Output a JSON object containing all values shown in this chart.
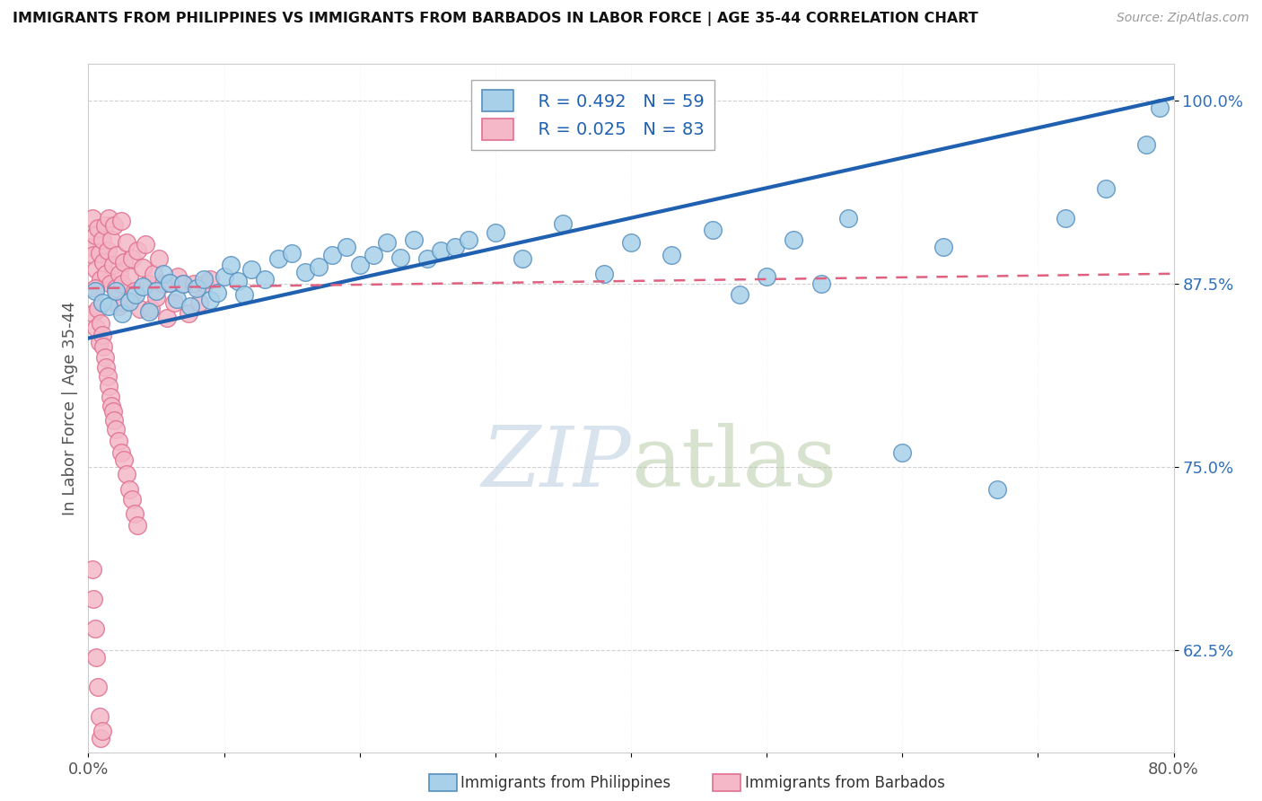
{
  "title": "IMMIGRANTS FROM PHILIPPINES VS IMMIGRANTS FROM BARBADOS IN LABOR FORCE | AGE 35-44 CORRELATION CHART",
  "source": "Source: ZipAtlas.com",
  "ylabel": "In Labor Force | Age 35-44",
  "x_min": 0.0,
  "x_max": 0.8,
  "y_min": 0.555,
  "y_max": 1.025,
  "y_ticks": [
    0.625,
    0.75,
    0.875,
    1.0
  ],
  "y_tick_labels": [
    "62.5%",
    "75.0%",
    "87.5%",
    "100.0%"
  ],
  "x_ticks": [
    0.0,
    0.1,
    0.2,
    0.3,
    0.4,
    0.5,
    0.6,
    0.7,
    0.8
  ],
  "x_tick_labels": [
    "0.0%",
    "",
    "",
    "",
    "",
    "",
    "",
    "",
    "80.0%"
  ],
  "legend_blue_r": "R = 0.492",
  "legend_blue_n": "N = 59",
  "legend_pink_r": "R = 0.025",
  "legend_pink_n": "N = 83",
  "blue_color": "#a8d0e8",
  "pink_color": "#f4b8c8",
  "blue_edge_color": "#5590c0",
  "pink_edge_color": "#e07090",
  "blue_line_color": "#2060b0",
  "pink_line_color": "#e06080",
  "watermark_zip": "ZIP",
  "watermark_atlas": "atlas",
  "blue_line_x0": 0.0,
  "blue_line_y0": 0.838,
  "blue_line_x1": 0.8,
  "blue_line_y1": 1.002,
  "pink_line_x0": 0.0,
  "pink_line_y0": 0.872,
  "pink_line_x1": 0.8,
  "pink_line_y1": 0.882,
  "blue_points_x": [
    0.005,
    0.01,
    0.015,
    0.02,
    0.025,
    0.03,
    0.035,
    0.04,
    0.045,
    0.05,
    0.055,
    0.06,
    0.065,
    0.07,
    0.075,
    0.08,
    0.085,
    0.09,
    0.095,
    0.1,
    0.105,
    0.11,
    0.115,
    0.12,
    0.13,
    0.14,
    0.15,
    0.16,
    0.17,
    0.18,
    0.19,
    0.2,
    0.21,
    0.22,
    0.23,
    0.24,
    0.25,
    0.26,
    0.27,
    0.28,
    0.3,
    0.32,
    0.35,
    0.38,
    0.4,
    0.43,
    0.46,
    0.48,
    0.5,
    0.52,
    0.54,
    0.56,
    0.6,
    0.63,
    0.67,
    0.72,
    0.75,
    0.78,
    0.79
  ],
  "blue_points_y": [
    0.87,
    0.862,
    0.86,
    0.87,
    0.855,
    0.863,
    0.868,
    0.873,
    0.856,
    0.87,
    0.882,
    0.876,
    0.865,
    0.875,
    0.86,
    0.872,
    0.878,
    0.864,
    0.869,
    0.88,
    0.888,
    0.877,
    0.868,
    0.885,
    0.878,
    0.892,
    0.896,
    0.883,
    0.887,
    0.895,
    0.9,
    0.888,
    0.895,
    0.903,
    0.893,
    0.905,
    0.892,
    0.898,
    0.9,
    0.905,
    0.91,
    0.892,
    0.916,
    0.882,
    0.903,
    0.895,
    0.912,
    0.868,
    0.88,
    0.905,
    0.875,
    0.92,
    0.76,
    0.9,
    0.735,
    0.92,
    0.94,
    0.97,
    0.995
  ],
  "pink_points_x": [
    0.002,
    0.003,
    0.004,
    0.005,
    0.006,
    0.007,
    0.008,
    0.009,
    0.01,
    0.011,
    0.012,
    0.013,
    0.014,
    0.015,
    0.016,
    0.017,
    0.018,
    0.019,
    0.02,
    0.021,
    0.022,
    0.023,
    0.024,
    0.025,
    0.026,
    0.027,
    0.028,
    0.03,
    0.032,
    0.034,
    0.036,
    0.038,
    0.04,
    0.042,
    0.044,
    0.046,
    0.048,
    0.05,
    0.052,
    0.055,
    0.058,
    0.06,
    0.063,
    0.066,
    0.07,
    0.074,
    0.078,
    0.082,
    0.086,
    0.09,
    0.004,
    0.005,
    0.006,
    0.007,
    0.008,
    0.009,
    0.01,
    0.011,
    0.012,
    0.013,
    0.014,
    0.015,
    0.016,
    0.017,
    0.018,
    0.019,
    0.02,
    0.022,
    0.024,
    0.026,
    0.028,
    0.03,
    0.032,
    0.034,
    0.036,
    0.003,
    0.004,
    0.005,
    0.006,
    0.007,
    0.008,
    0.009,
    0.01
  ],
  "pink_points_y": [
    0.9,
    0.92,
    0.895,
    0.908,
    0.885,
    0.913,
    0.896,
    0.878,
    0.905,
    0.89,
    0.915,
    0.882,
    0.898,
    0.92,
    0.875,
    0.905,
    0.888,
    0.915,
    0.872,
    0.895,
    0.86,
    0.882,
    0.918,
    0.875,
    0.89,
    0.862,
    0.903,
    0.88,
    0.892,
    0.87,
    0.898,
    0.858,
    0.886,
    0.902,
    0.875,
    0.858,
    0.882,
    0.866,
    0.892,
    0.875,
    0.852,
    0.876,
    0.862,
    0.88,
    0.875,
    0.855,
    0.875,
    0.862,
    0.875,
    0.878,
    0.855,
    0.872,
    0.845,
    0.858,
    0.835,
    0.848,
    0.84,
    0.832,
    0.825,
    0.818,
    0.812,
    0.805,
    0.798,
    0.792,
    0.788,
    0.782,
    0.776,
    0.768,
    0.76,
    0.755,
    0.745,
    0.735,
    0.728,
    0.718,
    0.71,
    0.68,
    0.66,
    0.64,
    0.62,
    0.6,
    0.58,
    0.565,
    0.57
  ]
}
